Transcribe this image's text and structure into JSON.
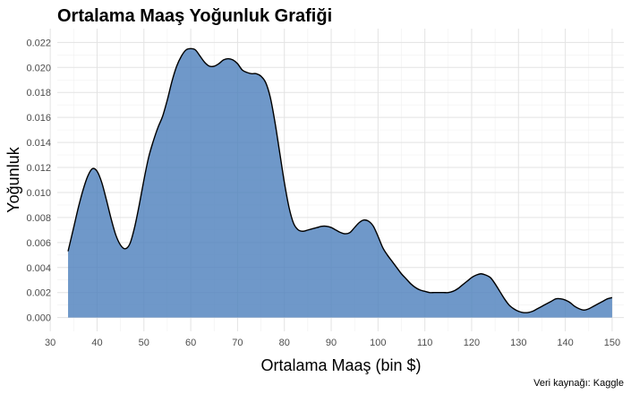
{
  "chart_data": {
    "type": "area",
    "title": "Ortalama Maaş Yoğunluk Grafiği",
    "xlabel": "Ortalama Maaş (bin $)",
    "ylabel": "Yoğunluk",
    "caption": "Veri kaynağı: Kaggle",
    "xlim": [
      31.5,
      152.5
    ],
    "ylim": [
      -0.0011,
      0.0231
    ],
    "x_ticks": [
      30,
      40,
      50,
      60,
      70,
      80,
      90,
      100,
      110,
      120,
      130,
      140,
      150
    ],
    "y_ticks": [
      0.0,
      0.002,
      0.004,
      0.006,
      0.008,
      0.01,
      0.012,
      0.014,
      0.016,
      0.018,
      0.02,
      0.022
    ],
    "y_tick_labels": [
      "0.000",
      "0.002",
      "0.004",
      "0.006",
      "0.008",
      "0.010",
      "0.012",
      "0.014",
      "0.016",
      "0.018",
      "0.020",
      "0.022"
    ],
    "grid": true,
    "fill_color": "#4f81bd",
    "line_color": "#000000",
    "x": [
      33.8,
      35,
      36,
      37,
      38,
      39,
      40,
      41,
      42,
      43,
      44,
      45,
      46,
      47,
      48,
      49,
      50,
      51,
      52,
      53,
      54,
      55,
      56,
      57,
      58,
      59,
      60,
      61,
      62,
      63,
      64,
      65,
      66,
      67,
      68,
      69,
      70,
      71,
      72,
      73,
      74,
      75,
      76,
      77,
      78,
      79,
      80,
      81,
      82,
      83,
      84,
      85,
      86,
      87,
      88,
      89,
      90,
      91,
      92,
      93,
      94,
      95,
      96,
      97,
      98,
      99,
      100,
      101,
      102,
      103,
      104,
      105,
      106,
      107,
      108,
      109,
      110,
      111,
      112,
      113,
      114,
      115,
      116,
      117,
      118,
      119,
      120,
      121,
      122,
      123,
      124,
      125,
      126,
      127,
      128,
      129,
      130,
      131,
      132,
      133,
      134,
      135,
      136,
      137,
      138,
      139,
      140,
      141,
      142,
      143,
      144,
      145,
      146,
      147,
      148,
      149,
      150
    ],
    "y": [
      0.0053,
      0.0072,
      0.0088,
      0.0102,
      0.0113,
      0.0119,
      0.0117,
      0.0108,
      0.0094,
      0.0079,
      0.0066,
      0.0058,
      0.0055,
      0.0059,
      0.0072,
      0.009,
      0.011,
      0.0128,
      0.0141,
      0.0152,
      0.0161,
      0.0174,
      0.0189,
      0.0201,
      0.0209,
      0.0214,
      0.0215,
      0.0214,
      0.0209,
      0.0204,
      0.0201,
      0.0201,
      0.0203,
      0.0206,
      0.0207,
      0.0206,
      0.0203,
      0.0198,
      0.0196,
      0.0195,
      0.0195,
      0.0193,
      0.0188,
      0.0176,
      0.0156,
      0.0132,
      0.0108,
      0.0088,
      0.0075,
      0.007,
      0.0069,
      0.007,
      0.0071,
      0.0072,
      0.0073,
      0.0073,
      0.0072,
      0.007,
      0.0068,
      0.0067,
      0.0068,
      0.0072,
      0.0076,
      0.0078,
      0.0077,
      0.0073,
      0.0065,
      0.0056,
      0.005,
      0.0045,
      0.004,
      0.0035,
      0.0031,
      0.0027,
      0.0024,
      0.0022,
      0.0021,
      0.002,
      0.002,
      0.002,
      0.002,
      0.002,
      0.0021,
      0.0023,
      0.0026,
      0.0029,
      0.0032,
      0.0034,
      0.0035,
      0.0034,
      0.0032,
      0.0027,
      0.0021,
      0.0015,
      0.001,
      0.0007,
      0.0005,
      0.0004,
      0.0004,
      0.0005,
      0.0007,
      0.0009,
      0.0011,
      0.0013,
      0.0015,
      0.0015,
      0.0014,
      0.0012,
      0.0009,
      0.0007,
      0.0006,
      0.0007,
      0.0009,
      0.0011,
      0.0013,
      0.0015,
      0.0016
    ]
  }
}
